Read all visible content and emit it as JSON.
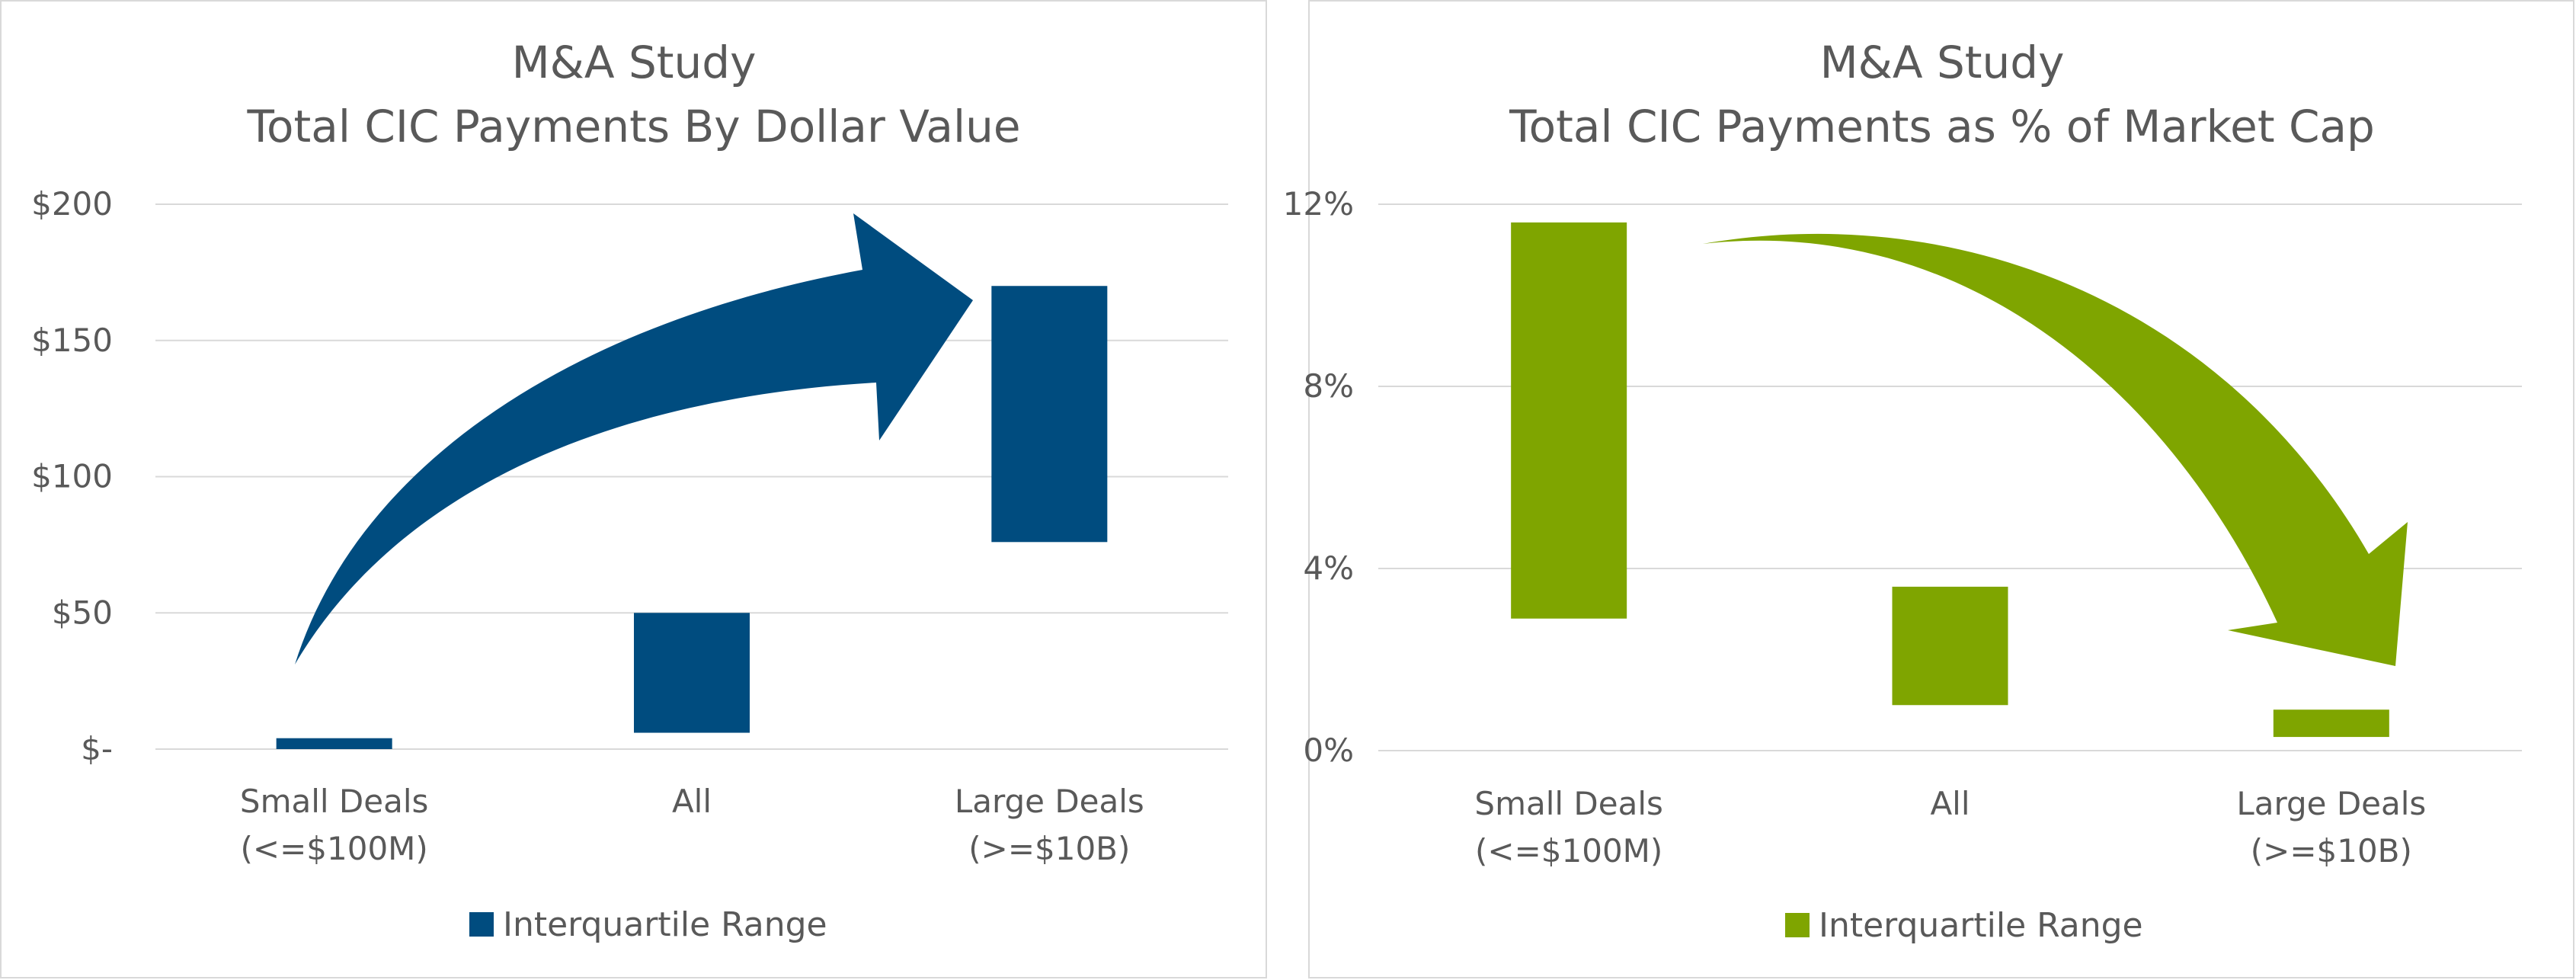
{
  "chart_data": [
    {
      "type": "bar",
      "subtype": "floating-range",
      "title": "M&A Study",
      "subtitle": "Total CIC Payments By Dollar Value",
      "categories": [
        [
          "Small Deals",
          "(<=$100M)"
        ],
        [
          "All",
          ""
        ],
        [
          "Large Deals",
          "(>=$10B)"
        ]
      ],
      "series": [
        {
          "name": "Interquartile Range",
          "low": [
            0,
            6,
            76
          ],
          "high": [
            4,
            50,
            170
          ]
        }
      ],
      "ylim": [
        0,
        200
      ],
      "yticks": [
        0,
        50,
        100,
        150,
        200
      ],
      "ytick_labels": [
        "$-",
        "$50",
        "$100",
        "$150",
        "$200"
      ],
      "color": "#004C7F",
      "grid": true,
      "legend": "bottom",
      "annotation": "upward arrow from Small Deals to Large Deals"
    },
    {
      "type": "bar",
      "subtype": "floating-range",
      "title": "M&A Study",
      "subtitle": "Total CIC Payments as % of Market Cap",
      "categories": [
        [
          "Small Deals",
          "(<=$100M)"
        ],
        [
          "All",
          ""
        ],
        [
          "Large Deals",
          "(>=$10B)"
        ]
      ],
      "series": [
        {
          "name": "Interquartile Range",
          "low": [
            2.9,
            1.0,
            0.3
          ],
          "high": [
            11.6,
            3.6,
            0.9
          ]
        }
      ],
      "ylim": [
        0,
        12
      ],
      "yticks": [
        0,
        4,
        8,
        12
      ],
      "ytick_labels": [
        "0%",
        "4%",
        "8%",
        "12%"
      ],
      "color": "#7FA500",
      "grid": true,
      "legend": "bottom",
      "annotation": "downward arrow from Small Deals to Large Deals"
    }
  ]
}
